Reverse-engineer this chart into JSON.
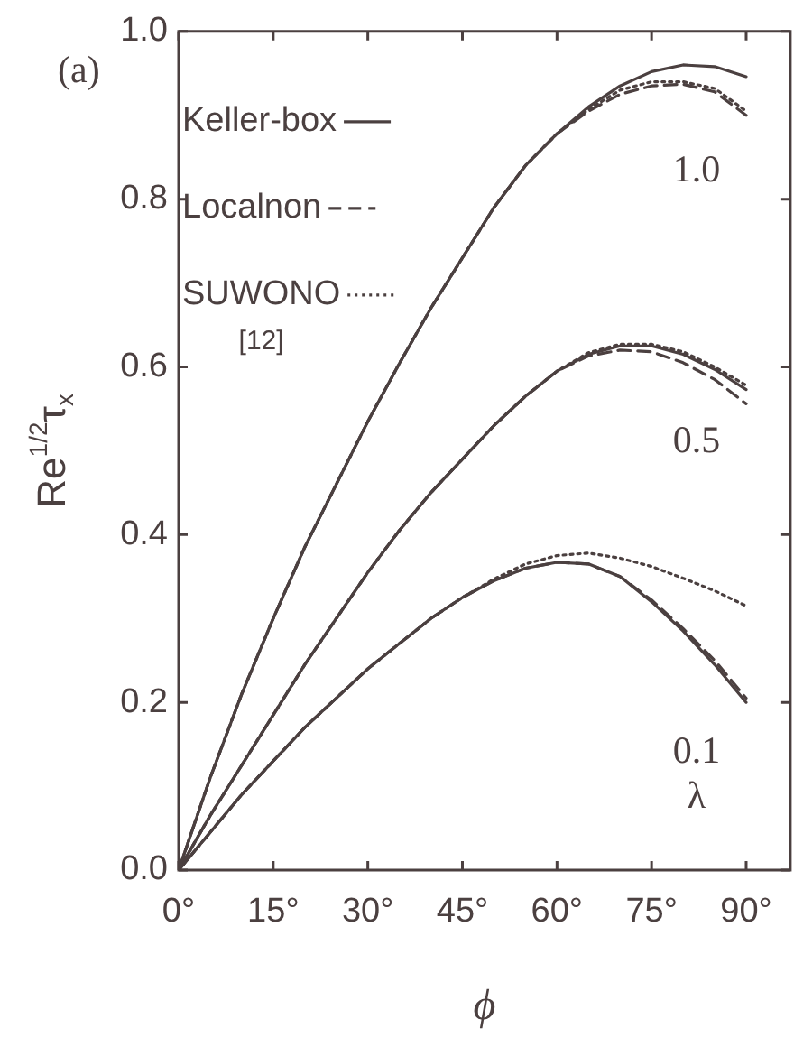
{
  "chart_data": {
    "type": "line",
    "xlabel": "ϕ",
    "ylabel": "Re$^{1/2}$τ$_{x}$",
    "legend": "top left",
    "grid": false,
    "x": [
      0,
      5,
      10,
      15,
      20,
      25,
      30,
      35,
      40,
      45,
      50,
      55,
      60,
      65,
      70,
      75,
      80,
      85,
      90
    ],
    "xlim": [
      0,
      97
    ],
    "xticks": [
      {
        "value": 0,
        "label": "0°"
      },
      {
        "value": 15,
        "label": "15°"
      },
      {
        "value": 30,
        "label": "30°"
      },
      {
        "value": 45,
        "label": "45°"
      },
      {
        "value": 60,
        "label": "60°"
      },
      {
        "value": 75,
        "label": "75°"
      },
      {
        "value": 90,
        "label": "90°"
      }
    ],
    "ylim": [
      0,
      1
    ],
    "yticks": [
      {
        "value": 0,
        "label": "0.0"
      },
      0.2,
      0.4,
      0.6,
      0.8,
      {
        "value": 1,
        "label": "1.0"
      }
    ],
    "series": [
      {
        "name": "Keller-box",
        "color": "#4b4040",
        "line_style": "solid",
        "values": [
          0,
          0.11,
          0.21,
          0.3,
          0.385,
          0.46,
          0.535,
          0.604,
          0.67,
          0.73,
          0.79,
          0.84,
          0.878,
          0.91,
          0.935,
          0.952,
          0.96,
          0.958,
          0.946
        ]
      },
      {
        "name": "Localnon",
        "color": "#4b4040",
        "line_style": "dashed",
        "values": [
          0,
          0.11,
          0.21,
          0.3,
          0.385,
          0.46,
          0.535,
          0.604,
          0.67,
          0.73,
          0.79,
          0.84,
          0.878,
          0.905,
          0.925,
          0.935,
          0.937,
          0.928,
          0.9
        ]
      },
      {
        "name": "SUWONO [12]",
        "color": "#4b4040",
        "line_style": "dotted",
        "values": [
          0,
          0.11,
          0.21,
          0.3,
          0.385,
          0.46,
          0.535,
          0.604,
          0.67,
          0.73,
          0.79,
          0.84,
          0.878,
          0.907,
          0.93,
          0.94,
          0.94,
          0.932,
          0.905
        ]
      },
      {
        "color": "#4b4040",
        "line_style": "solid",
        "values": [
          0,
          0.065,
          0.125,
          0.185,
          0.245,
          0.3,
          0.355,
          0.405,
          0.45,
          0.49,
          0.53,
          0.565,
          0.595,
          0.615,
          0.625,
          0.625,
          0.615,
          0.597,
          0.573
        ]
      },
      {
        "color": "#4b4040",
        "line_style": "dashed",
        "values": [
          0,
          0.065,
          0.125,
          0.185,
          0.245,
          0.3,
          0.355,
          0.405,
          0.45,
          0.49,
          0.53,
          0.565,
          0.595,
          0.613,
          0.62,
          0.618,
          0.605,
          0.585,
          0.556
        ]
      },
      {
        "color": "#4b4040",
        "line_style": "dotted",
        "values": [
          0,
          0.065,
          0.125,
          0.185,
          0.245,
          0.3,
          0.355,
          0.405,
          0.45,
          0.49,
          0.53,
          0.565,
          0.595,
          0.617,
          0.627,
          0.627,
          0.618,
          0.6,
          0.578
        ]
      },
      {
        "color": "#4b4040",
        "line_style": "solid",
        "values": [
          0,
          0.045,
          0.09,
          0.13,
          0.17,
          0.205,
          0.24,
          0.27,
          0.3,
          0.325,
          0.345,
          0.36,
          0.367,
          0.365,
          0.35,
          0.32,
          0.285,
          0.245,
          0.2
        ]
      },
      {
        "color": "#4b4040",
        "line_style": "dashed",
        "values": [
          0,
          0.045,
          0.09,
          0.13,
          0.17,
          0.205,
          0.24,
          0.27,
          0.3,
          0.325,
          0.345,
          0.36,
          0.367,
          0.365,
          0.35,
          0.322,
          0.288,
          0.25,
          0.205
        ]
      },
      {
        "color": "#4b4040",
        "line_style": "dotted",
        "values": [
          0,
          0.045,
          0.09,
          0.13,
          0.17,
          0.205,
          0.24,
          0.27,
          0.3,
          0.325,
          0.347,
          0.365,
          0.375,
          0.378,
          0.372,
          0.362,
          0.348,
          0.333,
          0.315
        ]
      }
    ],
    "annotations": [
      "(a)",
      "1.0",
      "0.5",
      "0.1",
      "λ"
    ]
  }
}
